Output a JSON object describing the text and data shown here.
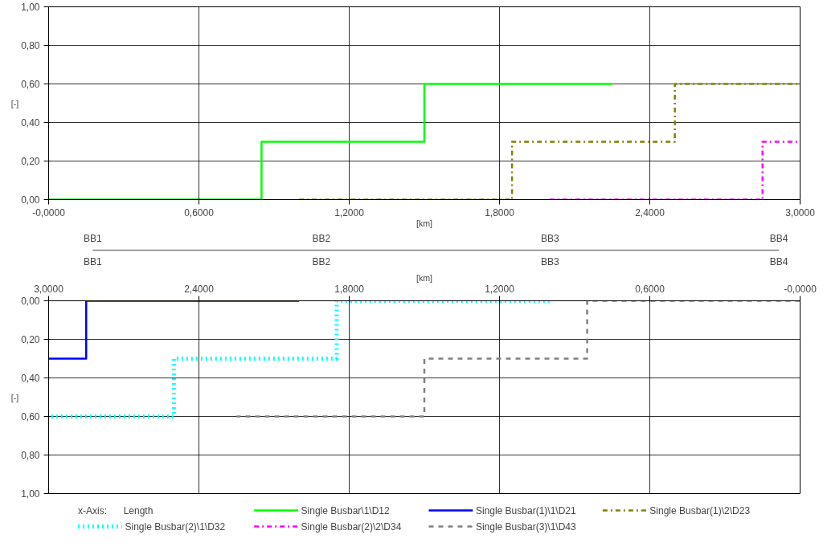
{
  "chart_data": [
    {
      "type": "step",
      "xlabel": "[km]",
      "ylabel": "[-]",
      "xlim": [
        0,
        3.0
      ],
      "ylim": [
        0,
        1.0
      ],
      "xticks": [
        {
          "value": 0,
          "label": "-0,0000"
        },
        {
          "value": 0.6,
          "label": "0,6000"
        },
        {
          "value": 1.2,
          "label": "1,2000"
        },
        {
          "value": 1.8,
          "label": "1,8000"
        },
        {
          "value": 2.4,
          "label": "2,4000"
        },
        {
          "value": 3.0,
          "label": "3,0000"
        }
      ],
      "yticks": [
        {
          "value": 0,
          "label": "0,00"
        },
        {
          "value": 0.2,
          "label": "0,20"
        },
        {
          "value": 0.4,
          "label": "0,40"
        },
        {
          "value": 0.6,
          "label": "0,60"
        },
        {
          "value": 0.8,
          "label": "0,80"
        },
        {
          "value": 1.0,
          "label": "1,00"
        }
      ],
      "grid": true,
      "legend": "bottom",
      "series": [
        {
          "name": "Single Busbar\\1\\D12",
          "color": "#00ff00",
          "line_style": "solid",
          "x": [
            0,
            0.85,
            1.5,
            2.25
          ],
          "values": [
            0,
            0.3,
            0.6,
            0.6
          ]
        },
        {
          "name": "Single Busbar(1)\\2\\D23",
          "color": "#808000",
          "line_style": "dashdot",
          "x": [
            1.0,
            1.85,
            2.5,
            3.0
          ],
          "values": [
            0,
            0.3,
            0.6,
            0.6
          ]
        },
        {
          "name": "Single Busbar(2)\\2\\D34",
          "color": "#ff00ff",
          "line_style": "dashdot",
          "x": [
            2.0,
            2.85,
            3.0
          ],
          "values": [
            0,
            0.3,
            0.3
          ]
        }
      ]
    },
    {
      "type": "other",
      "categories": [
        "BB1",
        "BB2",
        "BB3",
        "BB4"
      ]
    },
    {
      "type": "step",
      "xlabel": "[km]",
      "ylabel": "[-]",
      "xlim": [
        3.0,
        0
      ],
      "ylim": [
        1.0,
        0
      ],
      "xticks": [
        {
          "value": 0,
          "label": "-0,0000"
        },
        {
          "value": 0.6,
          "label": "0,6000"
        },
        {
          "value": 1.2,
          "label": "1,2000"
        },
        {
          "value": 1.8,
          "label": "1,8000"
        },
        {
          "value": 2.4,
          "label": "2,4000"
        },
        {
          "value": 3.0,
          "label": "3,0000"
        }
      ],
      "yticks": [
        {
          "value": 0,
          "label": "0,00"
        },
        {
          "value": 0.2,
          "label": "0,20"
        },
        {
          "value": 0.4,
          "label": "0,40"
        },
        {
          "value": 0.6,
          "label": "0,60"
        },
        {
          "value": 0.8,
          "label": "0,80"
        },
        {
          "value": 1.0,
          "label": "1,00"
        }
      ],
      "grid": true,
      "legend": "bottom",
      "annotations": [
        "x-Axis:",
        "Length"
      ],
      "series": [
        {
          "name": "Single Busbar(1)\\1\\D21",
          "color": "#0000ff",
          "line_style": "solid",
          "x": [
            2.0,
            2.85,
            3.0
          ],
          "values": [
            0,
            0.3,
            0.3
          ]
        },
        {
          "name": "Single Busbar(2)\\1\\D32",
          "color": "#00ffff",
          "line_style": "dotted",
          "x": [
            1.0,
            1.85,
            2.5,
            3.0
          ],
          "values": [
            0,
            0.3,
            0.6,
            0.6
          ]
        },
        {
          "name": "Single Busbar(3)\\1\\D43",
          "color": "#808080",
          "line_style": "dashed",
          "x": [
            0,
            0.85,
            1.5,
            2.25
          ],
          "values": [
            0,
            0.3,
            0.6,
            0.6
          ]
        }
      ]
    }
  ]
}
